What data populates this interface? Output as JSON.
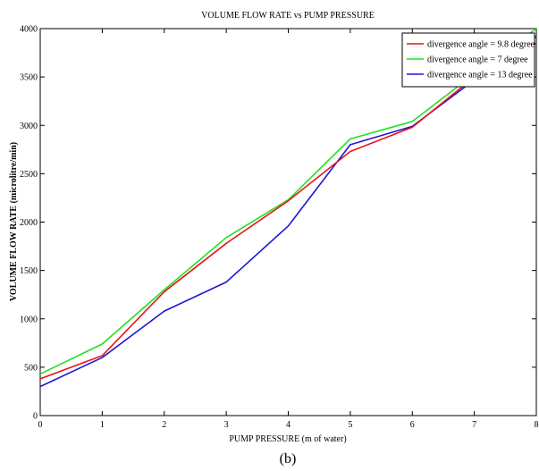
{
  "caption": "(b)",
  "chart_data": {
    "type": "line",
    "title": "VOLUME FLOW RATE vs PUMP PRESSURE",
    "xlabel": "PUMP PRESSURE (m of water)",
    "ylabel": "VOLUME FLOW RATE (microlitre/min)",
    "xlim": [
      0,
      8
    ],
    "ylim": [
      0,
      4000
    ],
    "xticks": [
      0,
      1,
      2,
      3,
      4,
      5,
      6,
      7,
      8
    ],
    "yticks": [
      0,
      500,
      1000,
      1500,
      2000,
      2500,
      3000,
      3500,
      4000
    ],
    "grid": false,
    "legend_position": "top-right",
    "x": [
      0,
      1,
      2,
      3,
      4,
      5,
      6,
      7,
      8
    ],
    "series": [
      {
        "name": "divergence angle = 9.8 degree",
        "color": "#e8141b",
        "values": [
          380,
          620,
          1280,
          1780,
          2220,
          2730,
          2980,
          3500,
          3850
        ]
      },
      {
        "name": "divergence angle = 7 degree",
        "color": "#22e01e",
        "values": [
          430,
          740,
          1300,
          1840,
          2230,
          2860,
          3040,
          3530,
          4000
        ]
      },
      {
        "name": "divergence angle = 13 degree",
        "color": "#1c16d6",
        "values": [
          300,
          600,
          1080,
          1380,
          1960,
          2800,
          2990,
          3470,
          3920
        ]
      }
    ]
  }
}
